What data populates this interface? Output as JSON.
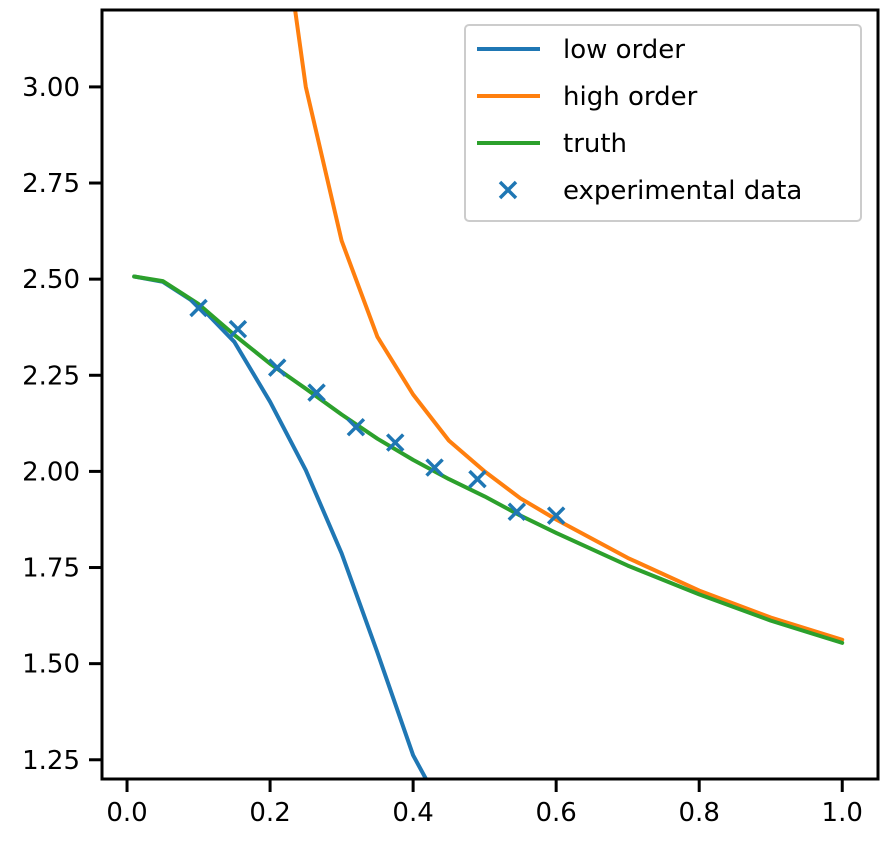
{
  "chart_data": {
    "type": "line",
    "title": "",
    "xlabel": "",
    "ylabel": "",
    "xlim": [
      -0.035,
      1.05
    ],
    "ylim": [
      1.2,
      3.2
    ],
    "xticks": [
      0.0,
      0.2,
      0.4,
      0.6,
      0.8,
      1.0
    ],
    "xtick_labels": [
      "0.0",
      "0.2",
      "0.4",
      "0.6",
      "0.8",
      "1.0"
    ],
    "yticks": [
      1.25,
      1.5,
      1.75,
      2.0,
      2.25,
      2.5,
      2.75,
      3.0
    ],
    "ytick_labels": [
      "1.25",
      "1.50",
      "1.75",
      "2.00",
      "2.25",
      "2.50",
      "2.75",
      "3.00"
    ],
    "grid": false,
    "legend_position": "top-right",
    "series": [
      {
        "name": "low order",
        "kind": "line",
        "color": "#1f77b4",
        "x": [
          0.01,
          0.05,
          0.1,
          0.15,
          0.2,
          0.25,
          0.3,
          0.35,
          0.4,
          0.418
        ],
        "y": [
          2.507,
          2.493,
          2.433,
          2.337,
          2.181,
          2.003,
          1.787,
          1.529,
          1.262,
          1.2
        ]
      },
      {
        "name": "high order",
        "kind": "line",
        "color": "#ff7f0e",
        "x": [
          0.235,
          0.25,
          0.3,
          0.35,
          0.4,
          0.45,
          0.5,
          0.55,
          0.6,
          0.7,
          0.8,
          0.9,
          1.0
        ],
        "y": [
          3.2,
          3.0,
          2.6,
          2.35,
          2.2,
          2.08,
          2.0,
          1.93,
          1.875,
          1.775,
          1.69,
          1.62,
          1.562
        ]
      },
      {
        "name": "truth",
        "kind": "line",
        "color": "#2ca02c",
        "x": [
          0.01,
          0.05,
          0.1,
          0.15,
          0.2,
          0.25,
          0.3,
          0.35,
          0.4,
          0.45,
          0.5,
          0.55,
          0.6,
          0.7,
          0.8,
          0.9,
          1.0
        ],
        "y": [
          2.507,
          2.495,
          2.435,
          2.355,
          2.28,
          2.215,
          2.148,
          2.085,
          2.03,
          1.98,
          1.935,
          1.885,
          1.84,
          1.755,
          1.68,
          1.612,
          1.554
        ]
      },
      {
        "name": "experimental data",
        "kind": "scatter",
        "marker": "x",
        "color": "#1f77b4",
        "x": [
          0.1,
          0.155,
          0.21,
          0.265,
          0.32,
          0.375,
          0.43,
          0.49,
          0.545,
          0.6
        ],
        "y": [
          2.425,
          2.37,
          2.27,
          2.205,
          2.115,
          2.075,
          2.01,
          1.98,
          1.895,
          1.885
        ]
      }
    ]
  }
}
